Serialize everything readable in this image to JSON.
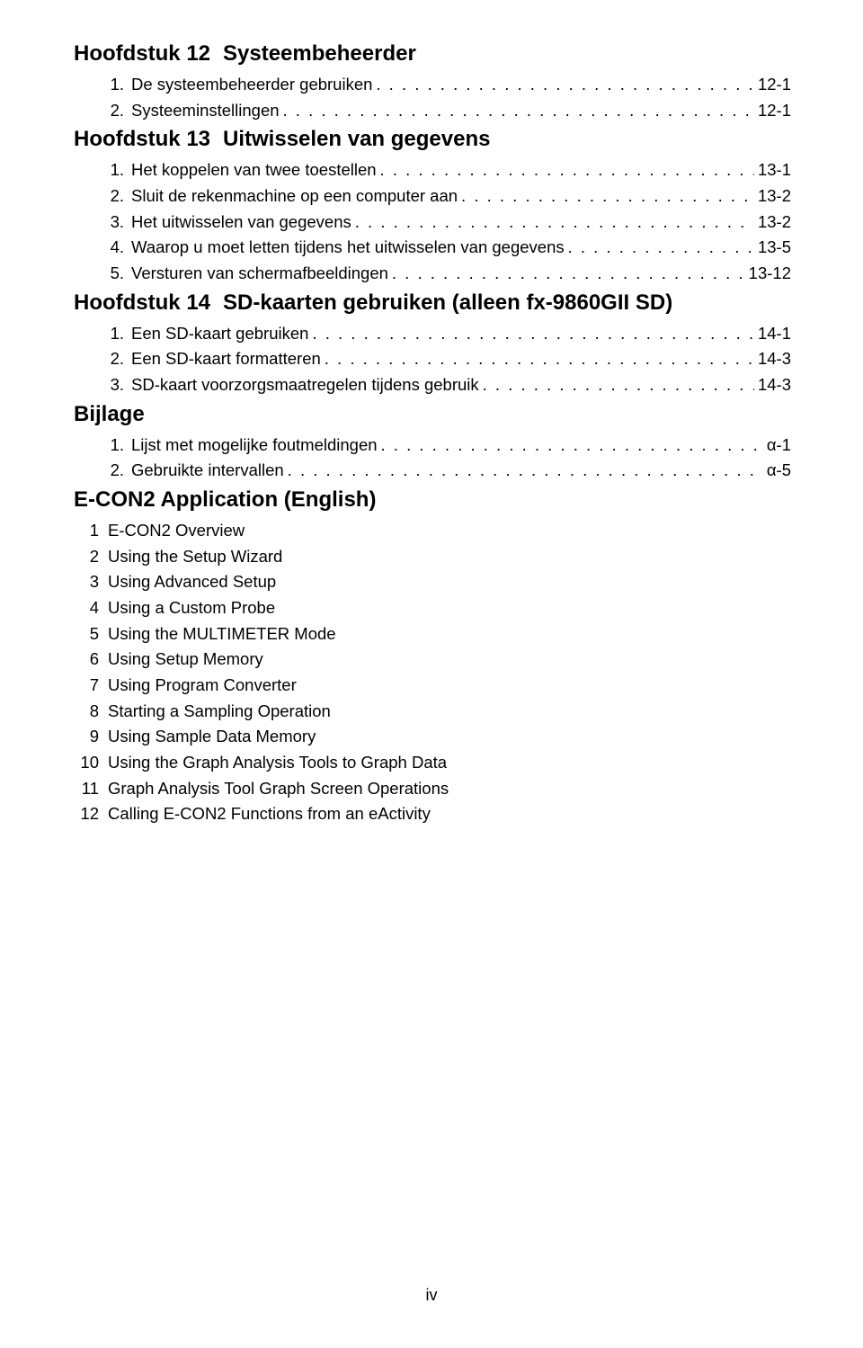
{
  "chapters": [
    {
      "prefix": "Hoofdstuk 12",
      "title": "Systeembeheerder",
      "countStart": 1,
      "entries": [
        {
          "title": "De systeembeheerder gebruiken",
          "page": "12-1"
        },
        {
          "title": "Systeeminstellingen",
          "page": "12-1"
        }
      ]
    },
    {
      "prefix": "Hoofdstuk 13",
      "title": "Uitwisselen van gegevens",
      "countStart": 1,
      "entries": [
        {
          "title": "Het koppelen van twee toestellen",
          "page": "13-1"
        },
        {
          "title": "Sluit de rekenmachine op een computer aan",
          "page": "13-2"
        },
        {
          "title": "Het uitwisselen van gegevens",
          "page": "13-2"
        },
        {
          "title": "Waarop u moet letten tijdens het uitwisselen van gegevens",
          "page": "13-5"
        },
        {
          "title": "Versturen van schermafbeeldingen",
          "page": "13-12"
        }
      ]
    },
    {
      "prefix": "Hoofdstuk 14",
      "title": "SD-kaarten gebruiken (alleen fx-9860GII SD)",
      "countStart": 1,
      "entries": [
        {
          "title": "Een SD-kaart gebruiken",
          "page": "14-1"
        },
        {
          "title": "Een SD-kaart formatteren",
          "page": "14-3"
        },
        {
          "title": "SD-kaart voorzorgsmaatregelen tijdens gebruik",
          "page": "14-3"
        }
      ]
    },
    {
      "prefix": "Bijlage",
      "title": "",
      "countStart": 1,
      "entries": [
        {
          "title": "Lijst met mogelijke foutmeldingen",
          "page": "α-1"
        },
        {
          "title": "Gebruikte intervallen",
          "page": "α-5"
        }
      ]
    },
    {
      "prefix": "E-CON2 Application (English)",
      "title": "",
      "countStart": 1,
      "plain": true,
      "entries": [
        {
          "title": "E-CON2 Overview"
        },
        {
          "title": "Using the Setup Wizard"
        },
        {
          "title": "Using Advanced Setup"
        },
        {
          "title": "Using a Custom Probe"
        },
        {
          "title": "Using the MULTIMETER Mode"
        },
        {
          "title": "Using Setup Memory"
        },
        {
          "title": "Using Program Converter"
        },
        {
          "title": "Starting a Sampling Operation"
        },
        {
          "title": "Using Sample Data Memory"
        },
        {
          "title": "Using the Graph Analysis Tools to Graph Data"
        },
        {
          "title": "Graph Analysis Tool Graph Screen Operations"
        },
        {
          "title": "Calling E-CON2 Functions from an eActivity"
        }
      ]
    }
  ],
  "footer": "iv"
}
